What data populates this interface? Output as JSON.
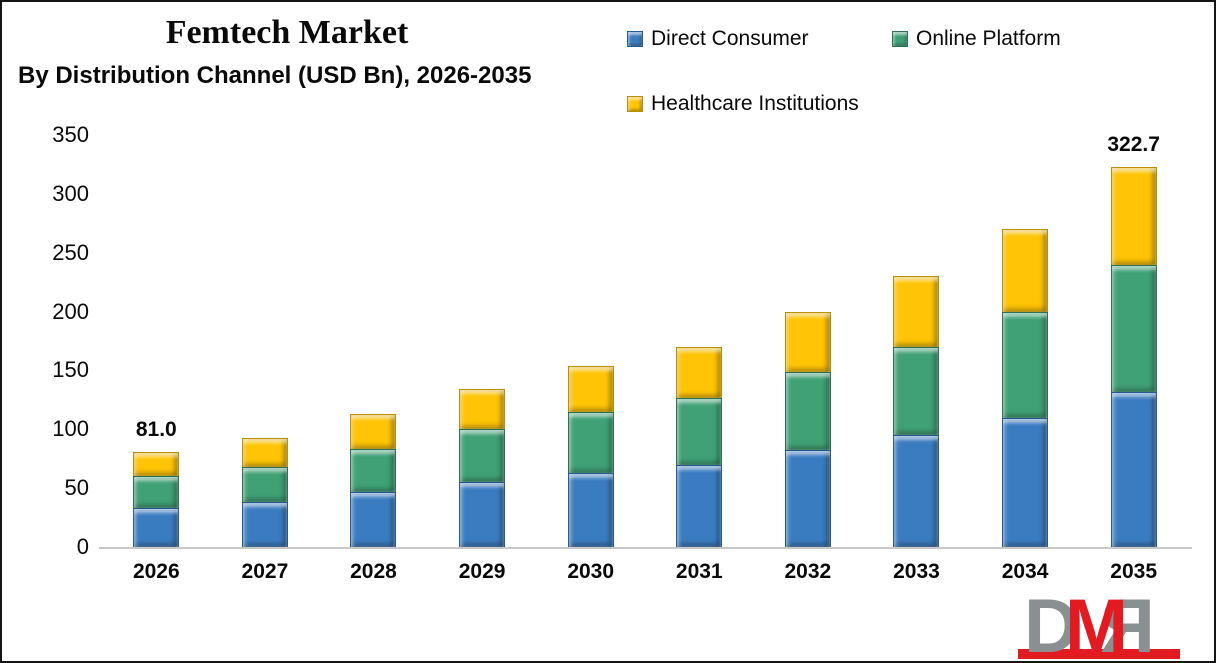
{
  "header": {
    "title": "Femtech Market",
    "subtitle": "By Distribution Channel (USD Bn), 2026-2035"
  },
  "chart_data": {
    "type": "bar",
    "stacked": true,
    "title": "Femtech Market",
    "subtitle": "By Distribution Channel (USD Bn), 2026-2035",
    "unit": "USD Bn",
    "categories": [
      "2026",
      "2027",
      "2028",
      "2029",
      "2030",
      "2031",
      "2032",
      "2033",
      "2034",
      "2035"
    ],
    "series": [
      {
        "name": "Direct Consumer",
        "color": "#3A7CC0",
        "edge": "#235C94",
        "values": [
          33,
          38,
          47,
          55,
          63,
          70,
          82,
          95,
          110,
          132
        ]
      },
      {
        "name": "Online Platform",
        "color": "#3FA175",
        "edge": "#2B7252",
        "values": [
          27,
          30,
          36,
          45,
          52,
          57,
          67,
          75,
          90,
          108
        ]
      },
      {
        "name": "Healthcare Institutions",
        "color": "#FFC405",
        "edge": "#BB8F00",
        "values": [
          21,
          25,
          30,
          34,
          39,
          43,
          51,
          60,
          70,
          82.7
        ]
      }
    ],
    "bar_totals_shown": {
      "2026": "81.0",
      "2035": "322.7"
    },
    "ylim": [
      0,
      350
    ],
    "yticks": [
      0,
      50,
      100,
      150,
      200,
      250,
      300,
      350
    ],
    "grid": false,
    "legend_position": "top-right"
  },
  "logo": {
    "text": "DMR",
    "letters": [
      "D",
      "M",
      "R"
    ],
    "letter_colors": [
      "#8A9091",
      "#E21B22",
      "#8A9091"
    ],
    "bar_color": "#E21B22"
  }
}
